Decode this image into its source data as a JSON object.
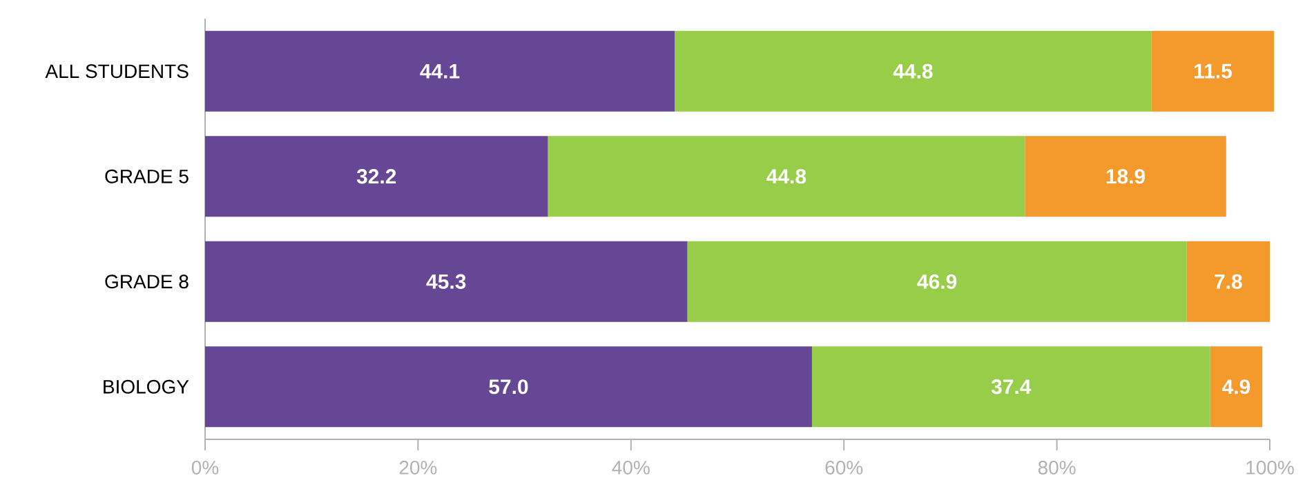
{
  "chart_data": {
    "type": "bar",
    "orientation": "horizontal",
    "stacked": true,
    "categories": [
      "ALL STUDENTS",
      "GRADE 5",
      "GRADE 8",
      "BIOLOGY"
    ],
    "series": [
      {
        "color": "#654796",
        "values": [
          44.1,
          32.2,
          45.3,
          57.0
        ],
        "value_labels": [
          "44.1",
          "32.2",
          "45.3",
          "57.0"
        ]
      },
      {
        "color": "#97cd48",
        "values": [
          44.8,
          44.8,
          46.9,
          37.4
        ],
        "value_labels": [
          "44.8",
          "44.8",
          "46.9",
          "37.4"
        ]
      },
      {
        "color": "#f4992c",
        "values": [
          11.5,
          18.9,
          7.8,
          4.9
        ],
        "value_labels": [
          "11.5",
          "18.9",
          "7.8",
          "4.9"
        ]
      }
    ],
    "xlim": [
      0,
      100
    ],
    "xticks": [
      {
        "value": 0,
        "label": "0%"
      },
      {
        "value": 20,
        "label": "20%"
      },
      {
        "value": 40,
        "label": "40%"
      },
      {
        "value": 60,
        "label": "60%"
      },
      {
        "value": 80,
        "label": "80%"
      },
      {
        "value": 100,
        "label": "100%"
      }
    ],
    "grid": false
  }
}
